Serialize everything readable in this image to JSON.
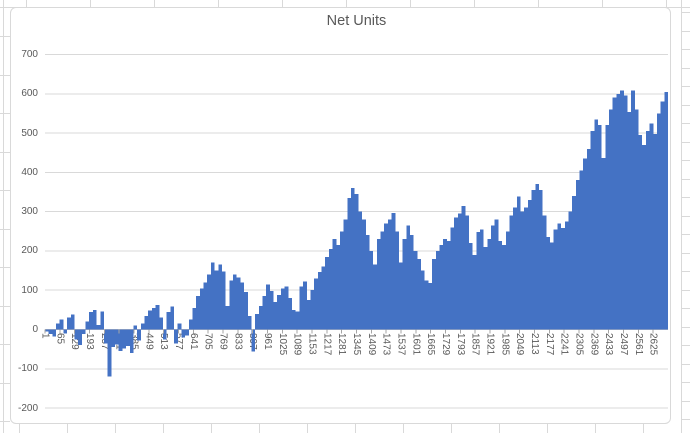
{
  "chart_data": {
    "type": "bar",
    "title": "Net Units",
    "n_categories": 2688,
    "ylim": [
      -200,
      700
    ],
    "y_ticks": [
      700,
      600,
      500,
      400,
      300,
      200,
      100,
      0,
      -100,
      -200
    ],
    "x_tick_labels": [
      "1",
      "65",
      "129",
      "193",
      "257",
      "321",
      "385",
      "449",
      "513",
      "577",
      "641",
      "705",
      "769",
      "833",
      "897",
      "961",
      "1025",
      "1089",
      "1153",
      "1217",
      "1281",
      "1345",
      "1409",
      "1473",
      "1537",
      "1601",
      "1665",
      "1729",
      "1793",
      "1857",
      "1921",
      "1985",
      "2049",
      "2113",
      "2177",
      "2241",
      "2305",
      "2369",
      "2433",
      "2497",
      "2561",
      "2625"
    ],
    "grid": true,
    "legend": "none",
    "bar_color": "#4472C4",
    "gridline_color": "#D9D9D9",
    "axis_line_color": "#BFBFBF",
    "tick_color": "#A6A6A6",
    "text_color": "#595959",
    "samples": {
      "x_start": 1,
      "x_step": 16,
      "values": [
        -5,
        -12,
        -18,
        15,
        25,
        -10,
        30,
        38,
        -25,
        -40,
        -12,
        20,
        45,
        50,
        12,
        46,
        -35,
        -120,
        -45,
        -38,
        -55,
        -48,
        -42,
        -60,
        10,
        -28,
        15,
        35,
        48,
        55,
        63,
        30,
        -26,
        45,
        58,
        -35,
        15,
        -20,
        -15,
        25,
        55,
        85,
        105,
        120,
        140,
        171,
        150,
        165,
        148,
        60,
        125,
        140,
        132,
        120,
        95,
        35,
        -56,
        40,
        60,
        85,
        115,
        98,
        70,
        88,
        105,
        109,
        80,
        50,
        46,
        110,
        122,
        75,
        100,
        130,
        147,
        160,
        185,
        205,
        230,
        215,
        250,
        280,
        335,
        360,
        345,
        300,
        280,
        240,
        200,
        165,
        230,
        250,
        270,
        280,
        296,
        250,
        170,
        230,
        265,
        240,
        200,
        180,
        150,
        125,
        118,
        180,
        200,
        215,
        230,
        225,
        260,
        285,
        295,
        314,
        290,
        220,
        190,
        248,
        255,
        210,
        230,
        265,
        280,
        225,
        215,
        250,
        290,
        310,
        338,
        300,
        310,
        330,
        355,
        370,
        355,
        290,
        235,
        222,
        255,
        270,
        258,
        275,
        300,
        340,
        381,
        405,
        435,
        460,
        505,
        535,
        520,
        436,
        520,
        560,
        590,
        600,
        609,
        596,
        554,
        608,
        560,
        495,
        470,
        505,
        525,
        498,
        550,
        580,
        605
      ]
    }
  }
}
